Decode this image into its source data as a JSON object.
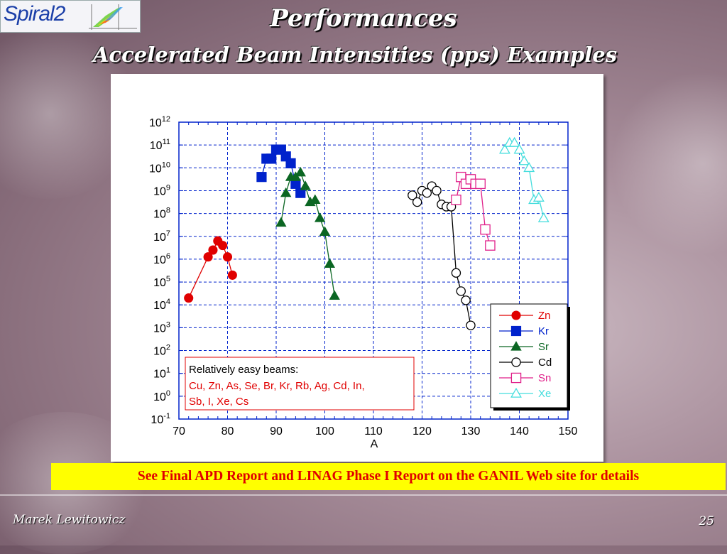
{
  "logo": {
    "text": "Spiral2"
  },
  "slide": {
    "title": "Performances",
    "subtitle": "Accelerated Beam Intensities (pps) Examples",
    "note": "See Final APD Report and LINAG Phase I Report on the GANIL Web site for details",
    "author": "Marek Lewitowicz",
    "page": "25"
  },
  "chart_data": {
    "type": "scatter",
    "xlabel": "A",
    "ylabel": "",
    "xlim": [
      70,
      150
    ],
    "x_ticks": [
      70,
      80,
      90,
      100,
      110,
      120,
      130,
      140,
      150
    ],
    "y_scale": "log",
    "ylim_exponent": [
      -1,
      12
    ],
    "y_tick_exponents": [
      12,
      11,
      10,
      9,
      8,
      7,
      6,
      5,
      4,
      3,
      2,
      1,
      0,
      -1
    ],
    "y_tick_base": "10",
    "grid": true,
    "legend_position": "bottom-right",
    "annotation": {
      "title": "Relatively easy beams:",
      "lines": [
        "Cu, Zn, As, Se, Br, Kr, Rb, Ag, Cd, In,",
        "Sb, I, Xe, Cs"
      ],
      "title_color": "#000000",
      "lines_color": "#e00000"
    },
    "series": [
      {
        "name": "Zn",
        "marker": "filled-circle",
        "color": "#e00000",
        "points": [
          [
            72,
            4.3
          ],
          [
            76,
            6.1
          ],
          [
            77,
            6.4
          ],
          [
            78,
            6.8
          ],
          [
            79,
            6.6
          ],
          [
            80,
            6.1
          ],
          [
            81,
            5.3
          ]
        ]
      },
      {
        "name": "Kr",
        "marker": "filled-square",
        "color": "#0022cc",
        "points": [
          [
            87,
            9.6
          ],
          [
            88,
            10.4
          ],
          [
            89,
            10.4
          ],
          [
            90,
            10.8
          ],
          [
            91,
            10.8
          ],
          [
            92,
            10.5
          ],
          [
            93,
            10.2
          ],
          [
            94,
            9.3
          ],
          [
            95,
            8.9
          ]
        ]
      },
      {
        "name": "Sr",
        "marker": "filled-triangle",
        "color": "#0b6623",
        "points": [
          [
            91,
            7.6
          ],
          [
            92,
            8.9
          ],
          [
            93,
            9.6
          ],
          [
            94,
            9.6
          ],
          [
            95,
            9.8
          ],
          [
            96,
            9.2
          ],
          [
            97,
            8.5
          ],
          [
            98,
            8.6
          ],
          [
            99,
            7.8
          ],
          [
            100,
            7.2
          ],
          [
            101,
            5.8
          ],
          [
            102,
            4.4
          ]
        ]
      },
      {
        "name": "Cd",
        "marker": "open-circle",
        "color": "#000000",
        "points": [
          [
            118,
            8.8
          ],
          [
            119,
            8.5
          ],
          [
            120,
            9.0
          ],
          [
            121,
            8.9
          ],
          [
            122,
            9.2
          ],
          [
            123,
            9.0
          ],
          [
            124,
            8.4
          ],
          [
            125,
            8.3
          ],
          [
            126,
            8.3
          ],
          [
            127,
            5.4
          ],
          [
            128,
            4.6
          ],
          [
            129,
            4.2
          ],
          [
            130,
            3.1
          ]
        ]
      },
      {
        "name": "Sn",
        "marker": "open-square",
        "color": "#e0208a",
        "points": [
          [
            127,
            8.6
          ],
          [
            128,
            9.6
          ],
          [
            129,
            9.3
          ],
          [
            130,
            9.5
          ],
          [
            131,
            9.3
          ],
          [
            132,
            9.3
          ],
          [
            133,
            7.3
          ],
          [
            134,
            6.6
          ]
        ]
      },
      {
        "name": "Xe",
        "marker": "open-triangle",
        "color": "#44dddd",
        "points": [
          [
            137,
            10.8
          ],
          [
            138,
            11.1
          ],
          [
            139,
            11.1
          ],
          [
            140,
            10.8
          ],
          [
            141,
            10.3
          ],
          [
            142,
            10.0
          ],
          [
            143,
            8.6
          ],
          [
            144,
            8.7
          ],
          [
            145,
            7.8
          ]
        ]
      }
    ]
  }
}
